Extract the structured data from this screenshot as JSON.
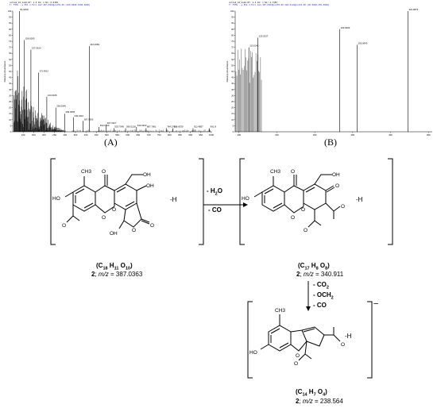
{
  "spectrum_a": {
    "header_line1": "cutle2_10_Sub4 RT: 1.5 AV: 1 NL: 6.01E4",
    "header_line2": "T: FTMS - p ESI d Full ms2 387.0363@cid35.00 [100.0000-1000.0000]",
    "label": "(A)",
    "ylabel": "Relative Abundance"
  },
  "spectrum_b": {
    "header_line1": "cutle2_10_Sub4 RT: 1.5 AV: 1 NL: 2.73E3",
    "header_line2": "T: FTMS - p ESI d Full ms3 387.0363@cid35.00 340.9110@cid35.00 [95.0000-355.0000]",
    "label": "(B)",
    "ylabel": "Relative Abundance"
  },
  "chart_data": [
    {
      "type": "bar",
      "xlim": [
        50,
        1000
      ],
      "ylim": [
        0,
        100
      ],
      "x_ticks": [
        100,
        150,
        200,
        250,
        300,
        350,
        400,
        450,
        500,
        550,
        600,
        650,
        700,
        750,
        800,
        850,
        900,
        950,
        1000
      ],
      "y_ticks": [
        0,
        5,
        10,
        15,
        20,
        25,
        30,
        35,
        40,
        45,
        50,
        55,
        60,
        65,
        70,
        75,
        80,
        85,
        90,
        95,
        100
      ],
      "labeled_peaks": [
        {
          "x": 81.9918,
          "y": 100,
          "label": "81.9918"
        },
        {
          "x": 106.0005,
          "y": 76,
          "label": "106.0005"
        },
        {
          "x": 137.0614,
          "y": 68,
          "label": "137.0614"
        },
        {
          "x": 172.9912,
          "y": 49,
          "label": "172.9912"
        },
        {
          "x": 213.0166,
          "y": 29,
          "label": "213.0166"
        },
        {
          "x": 256.0646,
          "y": 20,
          "label": "256.0646"
        },
        {
          "x": 299.0665,
          "y": 15,
          "label": "299.0665"
        },
        {
          "x": 340.911,
          "y": 12,
          "label": "340.9110"
        },
        {
          "x": 387.0363,
          "y": 9,
          "label": "387.0363"
        },
        {
          "x": 416.2083,
          "y": 71,
          "label": "416.2083"
        },
        {
          "x": 463.1433,
          "y": 4,
          "label": "463.1433"
        },
        {
          "x": 497.3327,
          "y": 6,
          "label": "497.3327"
        },
        {
          "x": 533.7045,
          "y": 3,
          "label": "533.7045"
        },
        {
          "x": 590.0218,
          "y": 3,
          "label": "590.0218"
        },
        {
          "x": 642.0203,
          "y": 4,
          "label": "642.0203"
        },
        {
          "x": 687.7901,
          "y": 3,
          "label": "687.7901"
        },
        {
          "x": 784.2703,
          "y": 3,
          "label": "784.2703"
        },
        {
          "x": 816.8339,
          "y": 3,
          "label": "816.8339"
        },
        {
          "x": 912.4857,
          "y": 3,
          "label": "912.4857"
        },
        {
          "x": 991.0886,
          "y": 3,
          "label": "991.0886"
        }
      ]
    },
    {
      "type": "bar",
      "xlim": [
        95,
        355
      ],
      "ylim": [
        0,
        100
      ],
      "x_ticks": [
        100,
        150,
        200,
        250,
        300,
        350
      ],
      "y_ticks": [
        0,
        5,
        10,
        15,
        20,
        25,
        30,
        35,
        40,
        45,
        50,
        55,
        60,
        65,
        70,
        75,
        80,
        85,
        90,
        95,
        100
      ],
      "labeled_peaks": [
        {
          "x": 113.0241,
          "y": 70,
          "label": "113.0241"
        },
        {
          "x": 125.0237,
          "y": 78,
          "label": "125.0237"
        },
        {
          "x": 233.0669,
          "y": 85,
          "label": "233.0669"
        },
        {
          "x": 256.0643,
          "y": 72,
          "label": "256.0643"
        },
        {
          "x": 322.9879,
          "y": 100,
          "label": "322.9879"
        }
      ]
    }
  ],
  "structures": {
    "s1": {
      "formula_prefix": "(C",
      "c": "18",
      "h_prefix": " H",
      "h": "11",
      "o_prefix": " O",
      "o": "10",
      "formula_suffix": ")",
      "compound": "2",
      "mz_text": "; m/z = 387.0363",
      "mz_label": "m/z",
      "mz_value": " = 387.0363"
    },
    "s2": {
      "formula_prefix": "(C",
      "c": "17",
      "h_prefix": " H",
      "h": "8",
      "o_prefix": " O",
      "o": "8",
      "formula_suffix": ")",
      "compound": "2",
      "mz_label": "m/z",
      "mz_value": " = 340.911"
    },
    "s3": {
      "formula_prefix": "(C",
      "c": "14",
      "h_prefix": " H",
      "h": "7",
      "o_prefix": " O",
      "o": "4",
      "formula_suffix": ")",
      "compound": "2",
      "mz_label": "m/z",
      "mz_value": " = 238.564"
    }
  },
  "atoms": {
    "s1": [
      "CH3",
      "O",
      "O",
      "O",
      "O",
      "OH",
      "HO",
      "OH",
      "O",
      "O",
      "O",
      "OH"
    ],
    "s2": [
      "CH3",
      "O",
      "O",
      "OH",
      "HO",
      "O",
      "O",
      "O",
      "O"
    ],
    "s3": [
      "CH3",
      "HO",
      "O",
      "O",
      "O"
    ]
  },
  "deprotonation": "-H",
  "charge": "−",
  "losses": {
    "step1": [
      "- H2O",
      "- CO"
    ],
    "step1_h2o_prefix": "- H",
    "step1_h2o_sub": "2",
    "step1_h2o_suffix": "O",
    "step1_co": "- CO",
    "step2_co2_prefix": "- CO",
    "step2_co2_sub": "2",
    "step2_och2_prefix": "- OCH",
    "step2_och2_sub": "2",
    "step2_co": "- CO"
  }
}
